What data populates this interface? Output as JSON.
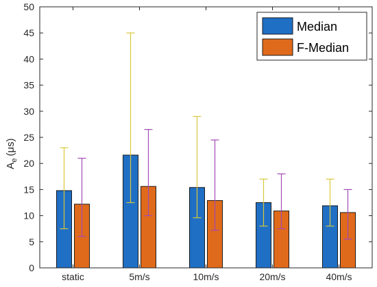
{
  "chart_data": {
    "type": "bar",
    "categories": [
      "static",
      "5m/s",
      "10m/s",
      "20m/s",
      "40m/s"
    ],
    "series": [
      {
        "name": "Median",
        "color": "#1f6fc4",
        "values": [
          14.8,
          21.6,
          15.4,
          12.5,
          11.9
        ],
        "err_low": [
          7.5,
          12.5,
          9.6,
          8.0,
          8.0
        ],
        "err_high": [
          23.0,
          45.0,
          29.0,
          17.0,
          17.0
        ],
        "error_color": "#d9c73a"
      },
      {
        "name": "F-Median",
        "color": "#e06a1b",
        "values": [
          12.2,
          15.6,
          12.9,
          10.9,
          10.6
        ],
        "err_low": [
          6.0,
          10.0,
          7.2,
          7.5,
          5.5
        ],
        "err_high": [
          21.0,
          26.5,
          24.5,
          18.0,
          15.0
        ],
        "error_color": "#a24ab5"
      }
    ],
    "ylabel_main": "A",
    "ylabel_sub": "e",
    "ylabel_unit": "(μs)",
    "ylim": [
      0,
      50
    ],
    "yticks": [
      0,
      5,
      10,
      15,
      20,
      25,
      30,
      35,
      40,
      45,
      50
    ],
    "legend_position": "top-right",
    "grid": false
  }
}
